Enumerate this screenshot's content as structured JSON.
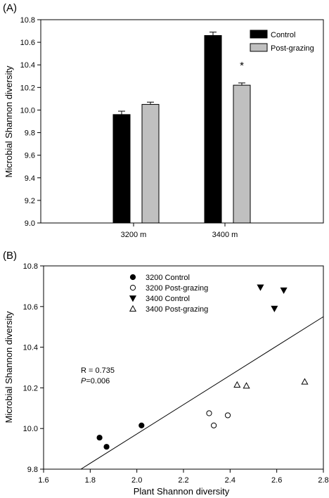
{
  "chart_data": [
    {
      "panel_label": "(A)",
      "type": "bar",
      "categories": [
        "3200 m",
        "3400 m"
      ],
      "series": [
        {
          "name": "Control",
          "color": "#000000",
          "values": [
            9.96,
            10.66
          ],
          "errors": [
            0.03,
            0.03
          ]
        },
        {
          "name": "Post-grazing",
          "color": "#c0c0c0",
          "values": [
            10.05,
            10.22
          ],
          "errors": [
            0.02,
            0.02
          ]
        }
      ],
      "ylabel": "Microbial Shannon diversity",
      "xlabel": "",
      "ylim": [
        9.0,
        10.8
      ],
      "yticks": [
        "9.0",
        "9.2",
        "9.4",
        "9.6",
        "9.8",
        "10.0",
        "10.2",
        "10.4",
        "10.6",
        "10.8"
      ],
      "annotations": [
        {
          "text": "*",
          "category": "3400 m",
          "series": "Post-grazing"
        }
      ],
      "legend": "top-right",
      "grid": false
    },
    {
      "panel_label": "(B)",
      "type": "scatter",
      "xlabel": "Plant Shannon diversity",
      "ylabel": "Microbial Shannon diversity",
      "xlim": [
        1.6,
        2.8
      ],
      "ylim": [
        9.8,
        10.8
      ],
      "xticks": [
        "1.6",
        "1.8",
        "2.0",
        "2.2",
        "2.4",
        "2.6",
        "2.8"
      ],
      "yticks": [
        "9.8",
        "10.0",
        "10.2",
        "10.4",
        "10.6",
        "10.8"
      ],
      "series": [
        {
          "name": "3200 Control",
          "marker": "circle-filled",
          "x": [
            1.84,
            1.87,
            2.02
          ],
          "y": [
            9.955,
            9.91,
            10.015
          ]
        },
        {
          "name": "3200 Post-grazing",
          "marker": "circle-open",
          "x": [
            2.31,
            2.33,
            2.39
          ],
          "y": [
            10.075,
            10.015,
            10.065
          ]
        },
        {
          "name": "3400 Control",
          "marker": "triangle-down-filled",
          "x": [
            2.53,
            2.59,
            2.63
          ],
          "y": [
            10.695,
            10.59,
            10.68
          ]
        },
        {
          "name": "3400 Post-grazing",
          "marker": "triangle-up-open",
          "x": [
            2.43,
            2.47,
            2.72
          ],
          "y": [
            10.215,
            10.21,
            10.23
          ]
        }
      ],
      "regression_line": {
        "x": [
          1.76,
          2.8
        ],
        "y": [
          9.8,
          10.55
        ]
      },
      "stats": {
        "r_text": "R = 0.735",
        "p_label": "P",
        "p_value": "=0.006"
      },
      "legend": "top-left",
      "grid": false
    }
  ]
}
